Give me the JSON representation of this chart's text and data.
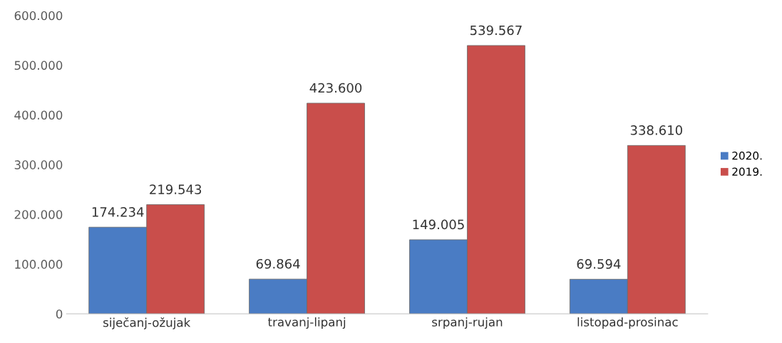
{
  "chart_data": {
    "type": "bar",
    "categories": [
      "siječanj-ožujak",
      "travanj-lipanj",
      "srpanj-rujan",
      "listopad-prosinac"
    ],
    "series": [
      {
        "name": "2020.",
        "color": "#4a7cc4",
        "values": [
          174234,
          69864,
          149005,
          69594
        ],
        "value_labels": [
          "174.234",
          "69.864",
          "149.005",
          "69.594"
        ]
      },
      {
        "name": "2019.",
        "color": "#c94e4b",
        "values": [
          219543,
          423600,
          539567,
          338610
        ],
        "value_labels": [
          "219.543",
          "423.600",
          "539.567",
          "338.610"
        ]
      }
    ],
    "ylim": [
      0,
      600000
    ],
    "yticks": [
      0,
      {
        "value": 100000,
        "label": "100.000"
      },
      {
        "value": 200000,
        "label": "200.000"
      },
      {
        "value": 300000,
        "label": "300.000"
      },
      {
        "value": 400000,
        "label": "400.000"
      },
      {
        "value": 500000,
        "label": "500.000"
      },
      {
        "value": 600000,
        "label": "600.000"
      }
    ],
    "grid": false,
    "legend": "right"
  }
}
